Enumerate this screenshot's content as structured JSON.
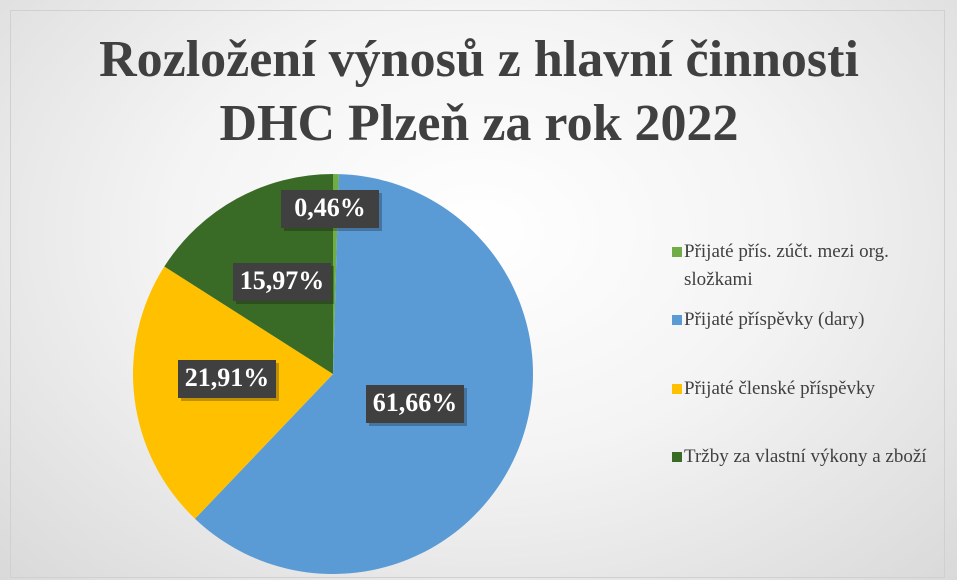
{
  "chart_data": {
    "type": "pie",
    "title": "Rozložení výnosů z hlavní činnosti DHC Plzeň za rok 2022",
    "categories": [
      "Přijaté přís. zúčt. mezi org. složkami",
      "Přijaté příspěvky (dary)",
      "Přijaté členské příspěvky",
      "Tržby za vlastní výkony a zboží"
    ],
    "values": [
      0.46,
      61.66,
      21.91,
      15.97
    ],
    "value_labels": [
      "0,46%",
      "61,66%",
      "21,91%",
      "15,97%"
    ],
    "colors": [
      "#70ad47",
      "#5b9bd5",
      "#ffc000",
      "#3a6b26"
    ],
    "legend": "right"
  }
}
